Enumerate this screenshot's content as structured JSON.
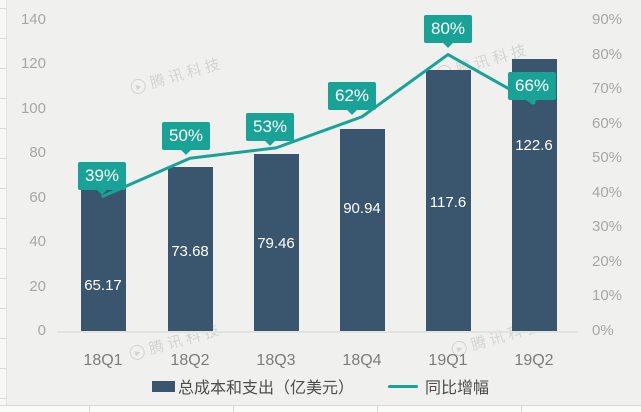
{
  "chart_data": {
    "type": "bar",
    "subtype": "bar-line-combo",
    "categories": [
      "18Q1",
      "18Q2",
      "18Q3",
      "18Q4",
      "19Q1",
      "19Q2"
    ],
    "series": [
      {
        "name": "总成本和支出（亿美元）",
        "type": "bar",
        "values": [
          65.17,
          73.68,
          79.46,
          90.94,
          117.6,
          122.6
        ],
        "labels": [
          "65.17",
          "73.68",
          "79.46",
          "90.94",
          "117.6",
          "122.6"
        ],
        "color": "#3a566f"
      },
      {
        "name": "同比增幅",
        "type": "line",
        "values": [
          39,
          50,
          53,
          62,
          80,
          66
        ],
        "labels": [
          "39%",
          "50%",
          "53%",
          "62%",
          "80%",
          "66%"
        ],
        "color": "#19a296"
      }
    ],
    "left_axis": {
      "min": 0,
      "max": 140,
      "step": 20,
      "ticks": [
        "140",
        "120",
        "100",
        "80",
        "60",
        "40",
        "20",
        "0"
      ]
    },
    "right_axis": {
      "min": 0,
      "max": 90,
      "step": 10,
      "ticks": [
        "90%",
        "80%",
        "70%",
        "60%",
        "50%",
        "40%",
        "30%",
        "20%",
        "10%",
        "0%"
      ]
    },
    "grid": "off",
    "legend_position": "bottom"
  },
  "legend": {
    "bar_label": "总成本和支出（亿美元）",
    "line_label": "同比增幅"
  },
  "watermark": {
    "text": "腾讯科技",
    "icon": "play-circle-icon",
    "icon_glyph": "▶"
  },
  "colors": {
    "bar": "#3a566f",
    "line": "#19a296",
    "callout_bg": "#19a296",
    "callout_text": "#ffffff",
    "bar_value_text": "#ffffff",
    "axis_text": "#a7a7a5",
    "x_label_text": "#7c7c7a",
    "legend_text": "#4d4d4b",
    "chart_background": "#f0f0ee"
  }
}
